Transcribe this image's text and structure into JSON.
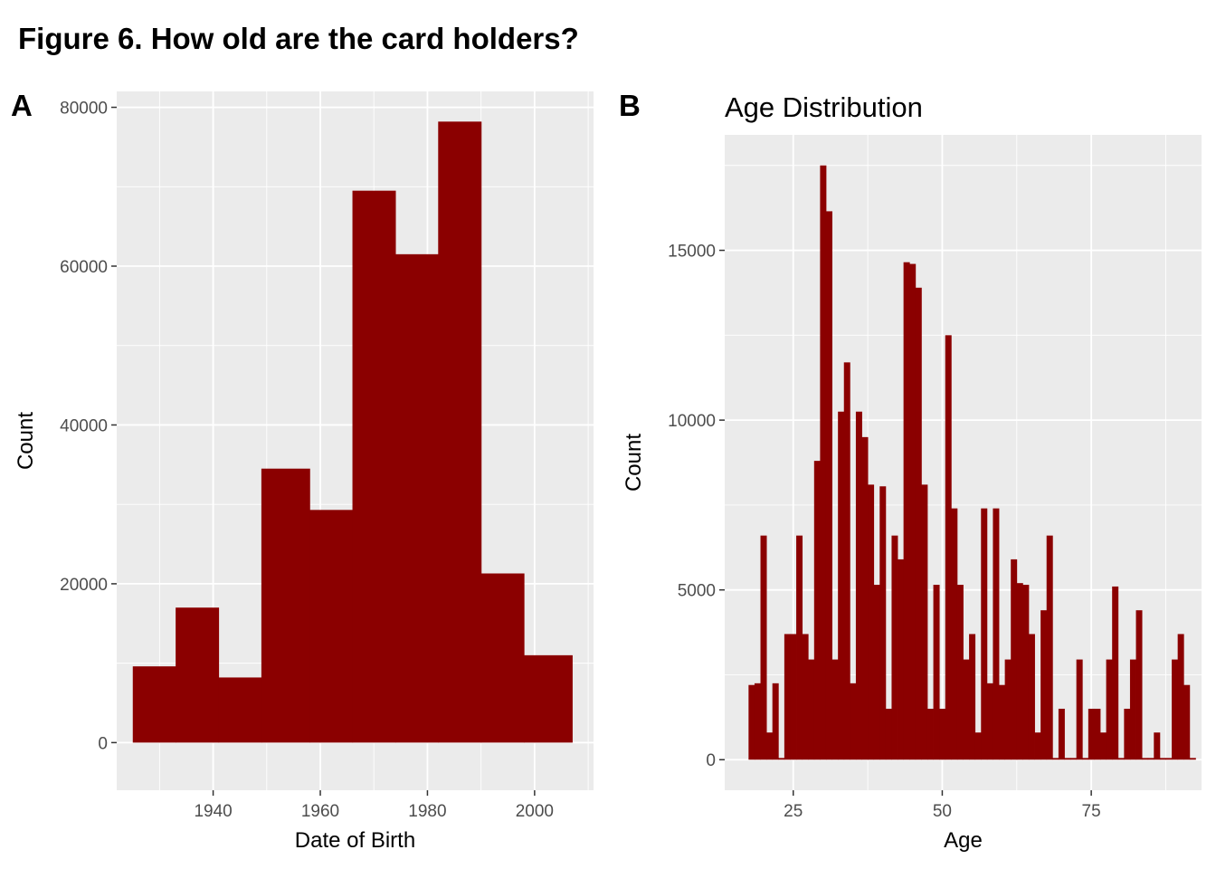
{
  "figure_title": "Figure 6. How old are the card holders?",
  "colors": {
    "bar": "#8b0000",
    "panel_bg": "#ebebeb",
    "grid": "#ffffff",
    "tick": "#4d4d4d"
  },
  "chart_data": [
    {
      "tag": "A",
      "type": "bar",
      "title": "",
      "xlabel": "Date of Birth",
      "ylabel": "Count",
      "xlim": [
        1922,
        2011
      ],
      "ylim": [
        -6000,
        82000
      ],
      "xticks": [
        1940,
        1960,
        1980,
        2000
      ],
      "yticks": [
        0,
        20000,
        40000,
        60000,
        80000
      ],
      "grid": true,
      "bin_edges": [
        1925,
        1933,
        1941,
        1949,
        1958,
        1966,
        1974,
        1982,
        1990,
        1998,
        2007
      ],
      "values": [
        9600,
        17000,
        8200,
        34500,
        29300,
        69500,
        61500,
        78200,
        21300,
        11000
      ]
    },
    {
      "tag": "B",
      "type": "bar",
      "title": "Age Distribution",
      "xlabel": "Age",
      "ylabel": "Count",
      "xlim": [
        13.5,
        93.5
      ],
      "ylim": [
        -900,
        18400
      ],
      "xticks": [
        25,
        50,
        75
      ],
      "yticks": [
        0,
        5000,
        10000,
        15000
      ],
      "grid": true,
      "bar_width": 1,
      "x": [
        18,
        19,
        20,
        21,
        22,
        23,
        24,
        25,
        26,
        27,
        28,
        29,
        30,
        31,
        32,
        33,
        34,
        35,
        36,
        37,
        38,
        39,
        40,
        41,
        42,
        43,
        44,
        45,
        46,
        47,
        48,
        49,
        50,
        51,
        52,
        53,
        54,
        55,
        56,
        57,
        58,
        59,
        60,
        61,
        62,
        63,
        64,
        65,
        66,
        67,
        68,
        69,
        70,
        71,
        72,
        73,
        74,
        75,
        76,
        77,
        78,
        79,
        80,
        81,
        82,
        83,
        84,
        85,
        86,
        87,
        88,
        89,
        90,
        91,
        92
      ],
      "values": [
        2200,
        2250,
        6600,
        800,
        2250,
        50,
        3700,
        3700,
        6600,
        3700,
        2950,
        8800,
        17500,
        16150,
        2950,
        10250,
        11700,
        2250,
        10250,
        9500,
        8100,
        5150,
        8050,
        1500,
        6600,
        5900,
        14650,
        14600,
        13900,
        8100,
        1500,
        5150,
        1500,
        12500,
        7400,
        5150,
        2950,
        3700,
        800,
        7400,
        2250,
        7400,
        2200,
        2950,
        5900,
        5200,
        5150,
        3700,
        800,
        4400,
        6600,
        50,
        1500,
        50,
        50,
        2950,
        50,
        1500,
        1500,
        800,
        2950,
        5100,
        50,
        1500,
        2950,
        4400,
        50,
        50,
        800,
        50,
        50,
        2950,
        3700,
        2200,
        50
      ]
    }
  ]
}
